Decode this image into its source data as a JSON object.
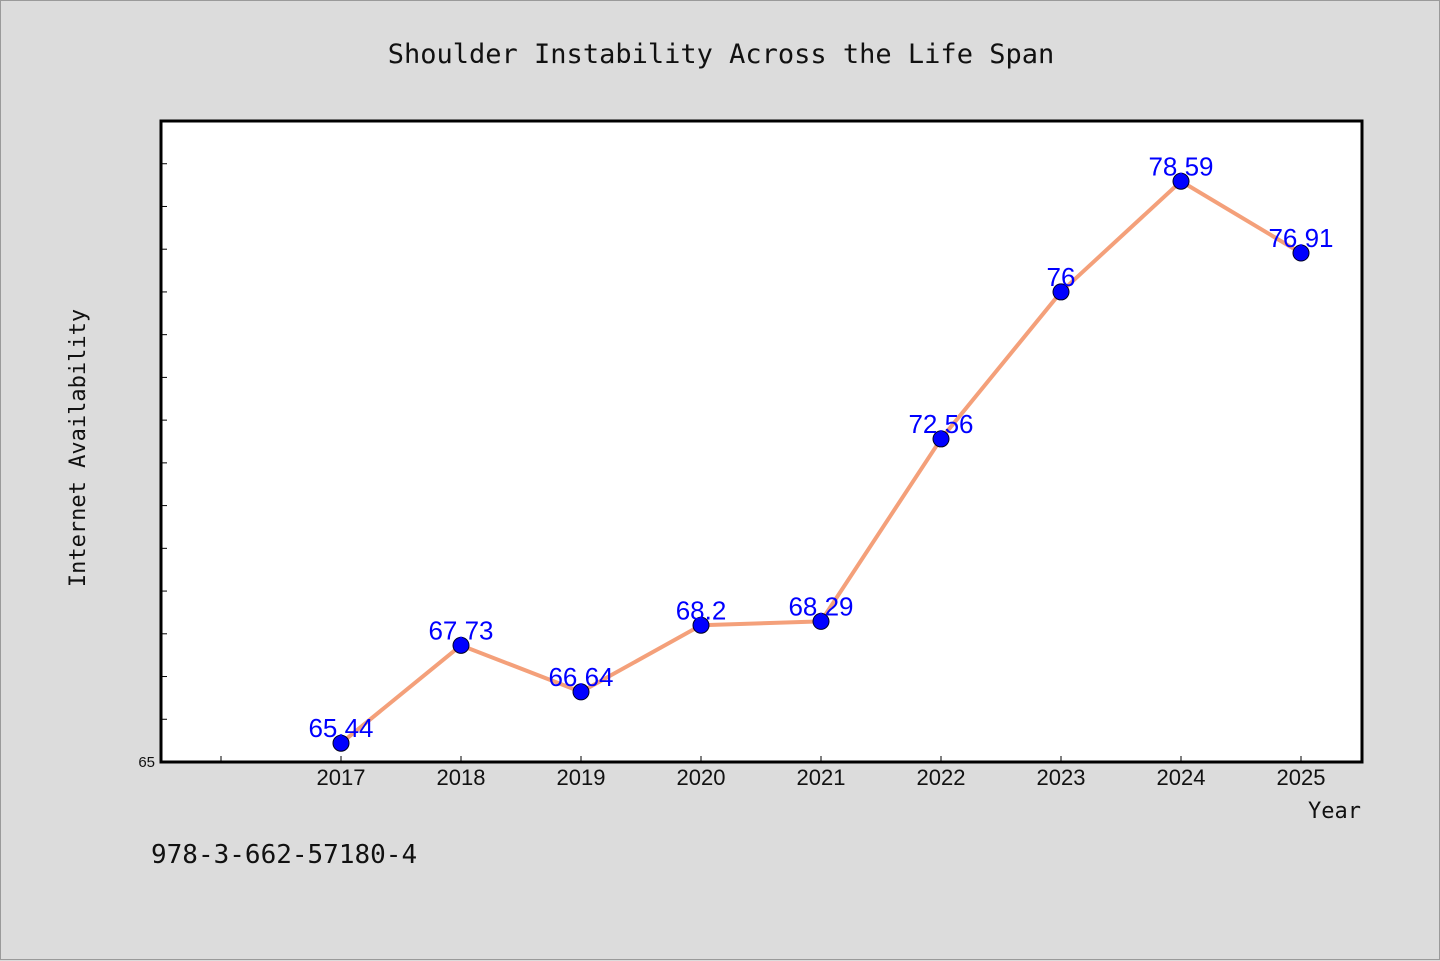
{
  "chart_data": {
    "type": "line",
    "title": "Shoulder Instability Across the Life Span",
    "xlabel": "Year",
    "ylabel": "Internet Availability",
    "categories": [
      "2017",
      "2018",
      "2019",
      "2020",
      "2021",
      "2022",
      "2023",
      "2024",
      "2025"
    ],
    "series": [
      {
        "values": [
          65.44,
          67.73,
          66.64,
          68.2,
          68.29,
          72.56,
          76,
          78.59,
          76.91
        ],
        "data_labels": [
          "65.44",
          "67.73",
          "66.64",
          "68.2",
          "68.29",
          "72.56",
          "76",
          "78.59",
          "76.91"
        ]
      }
    ],
    "y_tick_labels": [
      "65"
    ],
    "ylim": [
      65,
      80
    ],
    "y_minor_tick_step": 1,
    "grid": false,
    "legend": "none",
    "line_color": "#f4a07a",
    "marker_color": "#0000ff",
    "label_color": "#0000ff",
    "background_color": "#dcdcdc",
    "plot_background": "#ffffff"
  },
  "footnote": "978-3-662-57180-4"
}
